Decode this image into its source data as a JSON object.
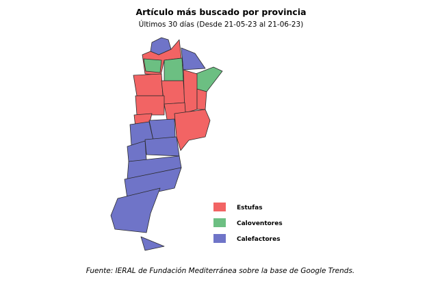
{
  "header": {
    "title": "Artículo más buscado por provincia",
    "subtitle": "Últimos 30 días (Desde 21-05-23 al 21-06-23)"
  },
  "legend": {
    "items": [
      {
        "label": "Estufas",
        "color": "#f26464"
      },
      {
        "label": "Caloventores",
        "color": "#6cbf82"
      },
      {
        "label": "Calefactores",
        "color": "#6f74c8"
      }
    ]
  },
  "source": "Fuente: IERAL de Fundación Mediterránea sobre la base de Google Trends."
}
